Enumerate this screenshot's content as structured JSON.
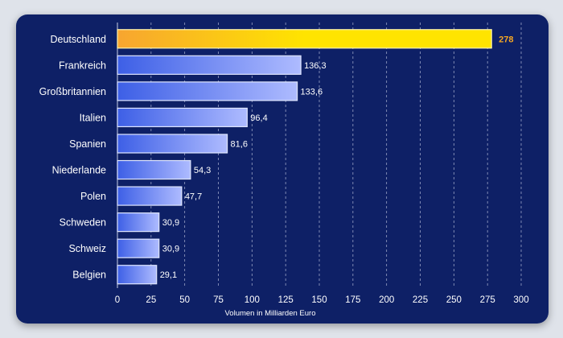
{
  "colors": {
    "background": "#0e2066",
    "bar_start": "#3d5fe6",
    "bar_end": "#aebbff",
    "highlight_start": "#f7a530",
    "highlight_end": "#ffe400",
    "highlight_label": "#f5a623",
    "grid": "#c9cfe6"
  },
  "chart_data": {
    "type": "bar",
    "orientation": "horizontal",
    "categories": [
      "Deutschland",
      "Frankreich",
      "Großbritannien",
      "Italien",
      "Spanien",
      "Niederlande",
      "Polen",
      "Schweden",
      "Schweiz",
      "Belgien"
    ],
    "values": [
      278,
      136.3,
      133.6,
      96.4,
      81.6,
      54.3,
      47.7,
      30.9,
      30.9,
      29.1
    ],
    "value_labels": [
      "278",
      "136,3",
      "133,6",
      "96,4",
      "81,6",
      "54,3",
      "47,7",
      "30,9",
      "30,9",
      "29,1"
    ],
    "highlight_index": 0,
    "xlabel": "Volumen in Milliarden Euro",
    "xlim": [
      0,
      300
    ],
    "xticks": [
      0,
      25,
      50,
      75,
      100,
      125,
      150,
      175,
      200,
      225,
      250,
      275,
      300
    ],
    "grid": "vertical dashed",
    "legend": "none"
  }
}
